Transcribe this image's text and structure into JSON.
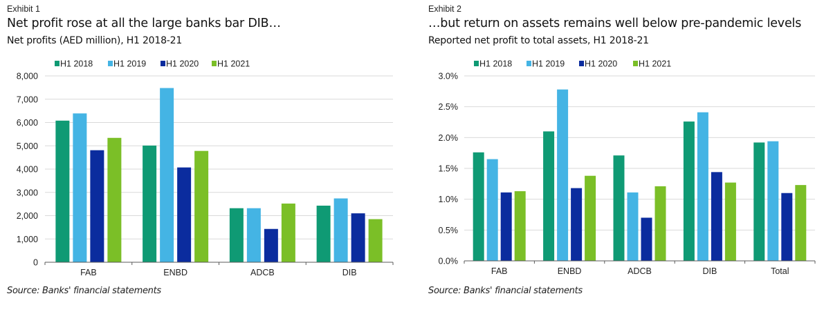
{
  "exhibits": [
    {
      "label": "Exhibit 1",
      "title": "Net profit rose at all the large banks bar DIB…",
      "subtitle": "Net profits (AED million), H1 2018-21",
      "source": "Source: Banks' financial statements"
    },
    {
      "label": "Exhibit 2",
      "title": "…but return on assets remains well below pre-pandemic levels",
      "subtitle": "Reported net profit to total assets, H1 2018-21",
      "source": "Source: Banks' financial statements"
    }
  ],
  "colors": {
    "H1 2018": "#0f9a74",
    "H1 2019": "#44b4e4",
    "H1 2020": "#0b2c9e",
    "H1 2021": "#7bbf27",
    "grid": "#d9d9d9",
    "axis": "#595959"
  },
  "chart_data": [
    {
      "type": "bar",
      "title": "Net profit rose at all the large banks bar DIB…",
      "subtitle": "Net profits (AED million), H1 2018-21",
      "xlabel": "",
      "ylabel": "AED million",
      "categories": [
        "FAB",
        "ENBD",
        "ADCB",
        "DIB"
      ],
      "series": [
        {
          "name": "H1 2018",
          "values": [
            6080,
            5010,
            2320,
            2430
          ]
        },
        {
          "name": "H1 2019",
          "values": [
            6390,
            7480,
            2320,
            2740
          ]
        },
        {
          "name": "H1 2020",
          "values": [
            4810,
            4070,
            1430,
            2100
          ]
        },
        {
          "name": "H1 2021",
          "values": [
            5340,
            4780,
            2520,
            1850
          ]
        }
      ],
      "ylim": [
        0,
        8000
      ],
      "yticks": [
        0,
        1000,
        2000,
        3000,
        4000,
        5000,
        6000,
        7000,
        8000
      ],
      "ytick_labels": [
        "0",
        "1,000",
        "2,000",
        "3,000",
        "4,000",
        "5,000",
        "6,000",
        "7,000",
        "8,000"
      ],
      "grid": true,
      "legend": "top-left"
    },
    {
      "type": "bar",
      "title": "…but return on assets remains well below pre-pandemic levels",
      "subtitle": "Reported net profit to total assets, H1 2018-21",
      "xlabel": "",
      "ylabel": "%",
      "categories": [
        "FAB",
        "ENBD",
        "ADCB",
        "DIB",
        "Total"
      ],
      "series": [
        {
          "name": "H1 2018",
          "values": [
            1.76,
            2.1,
            1.71,
            2.26,
            1.92
          ]
        },
        {
          "name": "H1 2019",
          "values": [
            1.65,
            2.78,
            1.11,
            2.41,
            1.94
          ]
        },
        {
          "name": "H1 2020",
          "values": [
            1.11,
            1.18,
            0.7,
            1.44,
            1.1
          ]
        },
        {
          "name": "H1 2021",
          "values": [
            1.13,
            1.38,
            1.21,
            1.27,
            1.23
          ]
        }
      ],
      "ylim": [
        0,
        3.0
      ],
      "yticks": [
        0,
        0.5,
        1.0,
        1.5,
        2.0,
        2.5,
        3.0
      ],
      "ytick_labels": [
        "0.0%",
        "0.5%",
        "1.0%",
        "1.5%",
        "2.0%",
        "2.5%",
        "3.0%"
      ],
      "grid": true,
      "legend": "top-left"
    }
  ]
}
